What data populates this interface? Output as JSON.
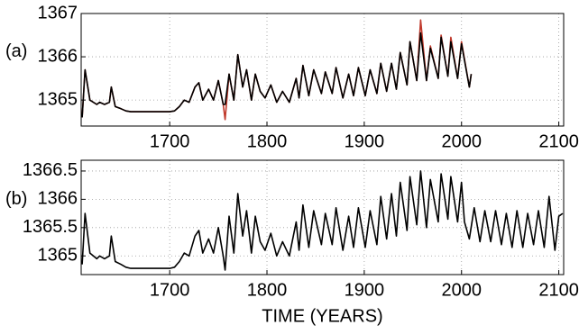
{
  "chart_data": [
    {
      "type": "line",
      "label": "(a)",
      "x": [
        1610,
        1613,
        1618,
        1625,
        1628,
        1633,
        1638,
        1640,
        1644,
        1650,
        1655,
        1660,
        1700,
        1705,
        1710,
        1715,
        1720,
        1726,
        1730,
        1734,
        1740,
        1745,
        1750,
        1755,
        1757,
        1761,
        1766,
        1770,
        1775,
        1779,
        1784,
        1788,
        1793,
        1798,
        1804,
        1810,
        1816,
        1823,
        1830,
        1833,
        1837,
        1843,
        1848,
        1856,
        1860,
        1867,
        1871,
        1878,
        1884,
        1889,
        1894,
        1901,
        1906,
        1913,
        1917,
        1923,
        1928,
        1933,
        1937,
        1944,
        1947,
        1954,
        1958,
        1964,
        1968,
        1976,
        1979,
        1986,
        1989,
        1996,
        2000,
        2008,
        2010
      ],
      "series": [
        {
          "color": "#c0392b",
          "values": [
            1364.6,
            1365.7,
            1365.0,
            1364.9,
            1364.95,
            1364.9,
            1364.95,
            1365.3,
            1364.85,
            1364.8,
            1364.75,
            1364.73,
            1364.73,
            1364.75,
            1364.85,
            1365.0,
            1364.95,
            1365.3,
            1365.4,
            1365.0,
            1365.25,
            1365.0,
            1365.45,
            1364.9,
            1364.55,
            1365.6,
            1365.0,
            1366.05,
            1365.3,
            1365.7,
            1365.0,
            1365.6,
            1365.2,
            1365.05,
            1365.35,
            1364.95,
            1365.2,
            1364.95,
            1365.5,
            1365.05,
            1365.8,
            1365.1,
            1365.7,
            1365.15,
            1365.65,
            1365.15,
            1365.75,
            1365.05,
            1365.6,
            1365.1,
            1365.75,
            1365.1,
            1365.7,
            1365.15,
            1365.85,
            1365.2,
            1365.85,
            1365.25,
            1366.1,
            1365.35,
            1366.35,
            1365.45,
            1366.85,
            1365.45,
            1366.25,
            1365.5,
            1366.5,
            1365.55,
            1366.45,
            1365.5,
            1366.35,
            1365.3,
            1365.6
          ]
        },
        {
          "color": "#000000",
          "values": [
            1364.6,
            1365.7,
            1365.0,
            1364.9,
            1364.95,
            1364.9,
            1364.95,
            1365.3,
            1364.85,
            1364.8,
            1364.75,
            1364.73,
            1364.73,
            1364.75,
            1364.85,
            1365.0,
            1364.95,
            1365.3,
            1365.4,
            1365.0,
            1365.25,
            1365.0,
            1365.45,
            1364.9,
            1364.9,
            1365.6,
            1365.0,
            1366.05,
            1365.3,
            1365.7,
            1365.0,
            1365.6,
            1365.2,
            1365.05,
            1365.35,
            1364.95,
            1365.2,
            1364.95,
            1365.5,
            1365.05,
            1365.8,
            1365.1,
            1365.7,
            1365.15,
            1365.65,
            1365.15,
            1365.75,
            1365.05,
            1365.6,
            1365.1,
            1365.75,
            1365.1,
            1365.7,
            1365.15,
            1365.85,
            1365.2,
            1365.85,
            1365.25,
            1366.1,
            1365.35,
            1366.35,
            1365.45,
            1366.55,
            1365.45,
            1366.2,
            1365.5,
            1366.45,
            1365.55,
            1366.35,
            1365.5,
            1366.3,
            1365.3,
            1365.6
          ]
        }
      ],
      "xlim": [
        1609,
        2105
      ],
      "xticks": [
        1700,
        1800,
        1900,
        2000,
        2100
      ],
      "ylim": [
        1364.4,
        1367
      ],
      "yticks": [
        1365,
        1366,
        1367
      ],
      "grid": true
    },
    {
      "type": "line",
      "label": "(b)",
      "x_label": "TIME (YEARS)",
      "x": [
        1610,
        1613,
        1618,
        1625,
        1628,
        1633,
        1638,
        1640,
        1644,
        1650,
        1655,
        1660,
        1700,
        1705,
        1710,
        1715,
        1720,
        1726,
        1730,
        1734,
        1740,
        1745,
        1750,
        1755,
        1757,
        1761,
        1766,
        1770,
        1775,
        1779,
        1784,
        1788,
        1793,
        1798,
        1804,
        1810,
        1816,
        1823,
        1830,
        1833,
        1837,
        1843,
        1848,
        1856,
        1860,
        1867,
        1871,
        1878,
        1884,
        1889,
        1894,
        1901,
        1906,
        1913,
        1917,
        1923,
        1928,
        1933,
        1937,
        1944,
        1947,
        1954,
        1958,
        1964,
        1968,
        1976,
        1979,
        1986,
        1989,
        1996,
        2000,
        2003,
        2008,
        2013,
        2019,
        2024,
        2030,
        2035,
        2041,
        2046,
        2052,
        2057,
        2063,
        2068,
        2074,
        2079,
        2085,
        2090,
        2096,
        2100,
        2104
      ],
      "series": [
        {
          "color": "#000000",
          "values": [
            1364.85,
            1365.75,
            1365.05,
            1364.95,
            1365.0,
            1364.95,
            1365.0,
            1365.35,
            1364.9,
            1364.85,
            1364.8,
            1364.78,
            1364.78,
            1364.8,
            1364.9,
            1365.05,
            1365.0,
            1365.35,
            1365.45,
            1365.05,
            1365.3,
            1365.05,
            1365.5,
            1365.0,
            1364.75,
            1365.7,
            1365.05,
            1366.1,
            1365.35,
            1365.8,
            1365.05,
            1365.7,
            1365.25,
            1365.1,
            1365.4,
            1365.0,
            1365.25,
            1365.0,
            1365.6,
            1365.1,
            1365.9,
            1365.15,
            1365.8,
            1365.2,
            1365.75,
            1365.2,
            1365.85,
            1365.1,
            1365.7,
            1365.15,
            1365.85,
            1365.15,
            1365.8,
            1365.2,
            1366.05,
            1365.3,
            1366.1,
            1365.35,
            1366.3,
            1365.45,
            1366.4,
            1365.55,
            1366.5,
            1365.5,
            1366.35,
            1365.6,
            1366.45,
            1365.65,
            1366.4,
            1365.6,
            1366.3,
            1365.6,
            1365.3,
            1365.85,
            1365.25,
            1365.8,
            1365.25,
            1365.8,
            1365.2,
            1365.75,
            1365.15,
            1365.8,
            1365.15,
            1365.75,
            1365.2,
            1365.8,
            1365.15,
            1366.05,
            1365.1,
            1365.7,
            1365.75
          ]
        }
      ],
      "xlim": [
        1609,
        2105
      ],
      "xticks": [
        1700,
        1800,
        1900,
        2000,
        2100
      ],
      "ylim": [
        1364.67,
        1366.69
      ],
      "yticks": [
        1365,
        1365.5,
        1366,
        1366.5
      ],
      "grid": true
    }
  ]
}
